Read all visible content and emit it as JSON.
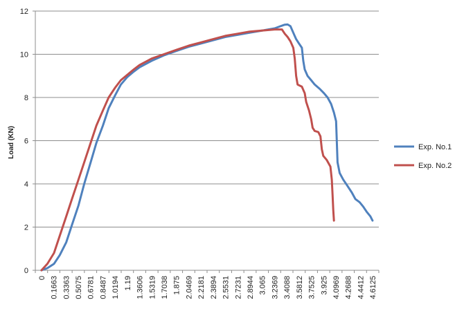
{
  "chart_data": {
    "type": "line",
    "xlabel": "",
    "ylabel": "Load (KN)",
    "ylim": [
      0,
      12
    ],
    "yticks": [
      "0",
      "2",
      "4",
      "6",
      "8",
      "10",
      "12"
    ],
    "x_tick_labels": [
      "0",
      "0.1663",
      "0.3363",
      "0.5075",
      "0.6781",
      "0.8487",
      "1.0194",
      "1.19",
      "1.3606",
      "1.5319",
      "1.7038",
      "1.875",
      "2.0469",
      "2.2181",
      "2.3894",
      "2.5531",
      "2.7231",
      "2.8944",
      "3.065",
      "3.2369",
      "3.4088",
      "3.5812",
      "3.7525",
      "3.925",
      "4.0969",
      "4.2688",
      "4.4412",
      "4.6125"
    ],
    "grid": "horizontal",
    "legend": "right",
    "series": [
      {
        "name": "Exp. No.1",
        "color": "#4F81BD",
        "points": [
          [
            0,
            0
          ],
          [
            0.08,
            0.1
          ],
          [
            0.17,
            0.3
          ],
          [
            0.25,
            0.7
          ],
          [
            0.34,
            1.3
          ],
          [
            0.42,
            2.1
          ],
          [
            0.51,
            3.0
          ],
          [
            0.59,
            4.0
          ],
          [
            0.68,
            5.0
          ],
          [
            0.76,
            5.9
          ],
          [
            0.85,
            6.7
          ],
          [
            0.93,
            7.5
          ],
          [
            1.02,
            8.1
          ],
          [
            1.1,
            8.6
          ],
          [
            1.19,
            8.95
          ],
          [
            1.28,
            9.2
          ],
          [
            1.36,
            9.4
          ],
          [
            1.53,
            9.7
          ],
          [
            1.7,
            9.95
          ],
          [
            1.87,
            10.15
          ],
          [
            2.05,
            10.35
          ],
          [
            2.22,
            10.5
          ],
          [
            2.39,
            10.65
          ],
          [
            2.55,
            10.8
          ],
          [
            2.72,
            10.9
          ],
          [
            2.89,
            11.0
          ],
          [
            3.07,
            11.1
          ],
          [
            3.15,
            11.15
          ],
          [
            3.24,
            11.2
          ],
          [
            3.32,
            11.3
          ],
          [
            3.38,
            11.37
          ],
          [
            3.42,
            11.38
          ],
          [
            3.46,
            11.3
          ],
          [
            3.5,
            11.0
          ],
          [
            3.54,
            10.7
          ],
          [
            3.58,
            10.5
          ],
          [
            3.62,
            10.3
          ],
          [
            3.64,
            9.7
          ],
          [
            3.66,
            9.3
          ],
          [
            3.7,
            9.0
          ],
          [
            3.75,
            8.8
          ],
          [
            3.8,
            8.6
          ],
          [
            3.87,
            8.4
          ],
          [
            3.93,
            8.2
          ],
          [
            3.98,
            8.0
          ],
          [
            4.03,
            7.7
          ],
          [
            4.07,
            7.3
          ],
          [
            4.1,
            6.9
          ],
          [
            4.11,
            6.0
          ],
          [
            4.12,
            5.0
          ],
          [
            4.15,
            4.5
          ],
          [
            4.2,
            4.2
          ],
          [
            4.26,
            3.9
          ],
          [
            4.32,
            3.6
          ],
          [
            4.37,
            3.3
          ],
          [
            4.43,
            3.15
          ],
          [
            4.48,
            2.95
          ],
          [
            4.53,
            2.7
          ],
          [
            4.58,
            2.5
          ],
          [
            4.61,
            2.3
          ]
        ]
      },
      {
        "name": "Exp. No.2",
        "color": "#C0504D",
        "points": [
          [
            0,
            0
          ],
          [
            0.08,
            0.3
          ],
          [
            0.17,
            0.8
          ],
          [
            0.25,
            1.6
          ],
          [
            0.34,
            2.5
          ],
          [
            0.42,
            3.3
          ],
          [
            0.51,
            4.2
          ],
          [
            0.59,
            5.0
          ],
          [
            0.68,
            5.9
          ],
          [
            0.76,
            6.7
          ],
          [
            0.85,
            7.4
          ],
          [
            0.93,
            8.0
          ],
          [
            1.02,
            8.45
          ],
          [
            1.1,
            8.8
          ],
          [
            1.19,
            9.05
          ],
          [
            1.28,
            9.3
          ],
          [
            1.36,
            9.5
          ],
          [
            1.53,
            9.8
          ],
          [
            1.7,
            10.0
          ],
          [
            1.87,
            10.2
          ],
          [
            2.05,
            10.4
          ],
          [
            2.22,
            10.55
          ],
          [
            2.39,
            10.7
          ],
          [
            2.55,
            10.85
          ],
          [
            2.72,
            10.95
          ],
          [
            2.89,
            11.05
          ],
          [
            3.07,
            11.1
          ],
          [
            3.24,
            11.15
          ],
          [
            3.34,
            11.15
          ],
          [
            3.38,
            10.95
          ],
          [
            3.42,
            10.8
          ],
          [
            3.46,
            10.6
          ],
          [
            3.5,
            10.3
          ],
          [
            3.52,
            9.8
          ],
          [
            3.54,
            9.0
          ],
          [
            3.56,
            8.6
          ],
          [
            3.62,
            8.5
          ],
          [
            3.66,
            8.2
          ],
          [
            3.68,
            7.8
          ],
          [
            3.72,
            7.4
          ],
          [
            3.75,
            7.0
          ],
          [
            3.77,
            6.6
          ],
          [
            3.8,
            6.45
          ],
          [
            3.85,
            6.4
          ],
          [
            3.88,
            6.2
          ],
          [
            3.9,
            5.6
          ],
          [
            3.92,
            5.3
          ],
          [
            3.97,
            5.1
          ],
          [
            4.02,
            4.8
          ],
          [
            4.04,
            4.2
          ],
          [
            4.05,
            3.5
          ],
          [
            4.06,
            2.8
          ],
          [
            4.07,
            2.3
          ]
        ]
      }
    ]
  }
}
